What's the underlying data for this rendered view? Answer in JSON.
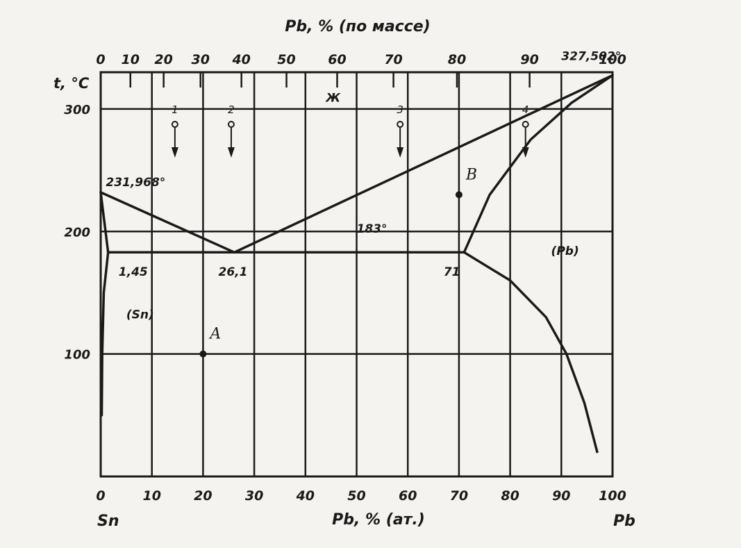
{
  "chart_data": {
    "type": "line",
    "top_axis_title": "Pb, % (по массе)",
    "bottom_axis_title": "Pb, % (ат.)",
    "y_axis_title": "t, °C",
    "left_end_label": "Sn",
    "right_end_label": "Pb",
    "x_range": [
      0,
      100
    ],
    "y_range": [
      0,
      330
    ],
    "x_ticks": [
      "0",
      "10",
      "20",
      "30",
      "40",
      "50",
      "60",
      "70",
      "80",
      "90",
      "100"
    ],
    "y_ticks": [
      "100",
      "200",
      "300"
    ],
    "top_ticks": [
      {
        "label": "0",
        "at": 0
      },
      {
        "label": "10",
        "at": 5.8
      },
      {
        "label": "20",
        "at": 12.3
      },
      {
        "label": "30",
        "at": 19.5
      },
      {
        "label": "40",
        "at": 27.5
      },
      {
        "label": "50",
        "at": 36.3
      },
      {
        "label": "60",
        "at": 46.2
      },
      {
        "label": "70",
        "at": 57.2
      },
      {
        "label": "80",
        "at": 69.6
      },
      {
        "label": "90",
        "at": 83.8
      },
      {
        "label": "100",
        "at": 100
      }
    ],
    "series": [
      {
        "values": [
          [
            0,
            231.968
          ],
          [
            26.1,
            183
          ]
        ]
      },
      {
        "values": [
          [
            26.1,
            183
          ],
          [
            100,
            327.502
          ]
        ]
      },
      {
        "values": [
          [
            0,
            231.968
          ],
          [
            1.45,
            183
          ]
        ]
      },
      {
        "values": [
          [
            1.45,
            183
          ],
          [
            0.6,
            150
          ],
          [
            0.3,
            100
          ],
          [
            0.2,
            50
          ]
        ]
      },
      {
        "values": [
          [
            71,
            183
          ],
          [
            76,
            230
          ],
          [
            84,
            275
          ],
          [
            92,
            305
          ],
          [
            100,
            327.502
          ]
        ]
      },
      {
        "values": [
          [
            71,
            183
          ],
          [
            80,
            160
          ],
          [
            87,
            130
          ],
          [
            91,
            100
          ],
          [
            94.5,
            60
          ],
          [
            97,
            20
          ]
        ]
      },
      {
        "values": [
          [
            1.45,
            183
          ],
          [
            71,
            183
          ]
        ]
      }
    ],
    "points": [
      {
        "label": "A",
        "x": 20,
        "y": 100
      },
      {
        "label": "B",
        "x": 70,
        "y": 230
      }
    ],
    "annotations": [
      {
        "text": "231,968°",
        "x": 1,
        "y": 237
      },
      {
        "text": "327,502°",
        "x": 90,
        "y": 340
      },
      {
        "text": "183°",
        "x": 50,
        "y": 199
      },
      {
        "text": "1,45",
        "x": 3.5,
        "y": 164
      },
      {
        "text": "26,1",
        "x": 23,
        "y": 164
      },
      {
        "text": "71",
        "x": 67,
        "y": 164
      },
      {
        "text": "(Sn)",
        "x": 5,
        "y": 129
      },
      {
        "text": "(Pb)",
        "x": 88,
        "y": 181
      },
      {
        "text": "Ж",
        "x": 44,
        "y": 306
      }
    ],
    "arrows": [
      {
        "label": "1",
        "x": 14.5
      },
      {
        "label": "2",
        "x": 25.5
      },
      {
        "label": "3",
        "x": 58.5
      },
      {
        "label": "4",
        "x": 83
      }
    ],
    "grid": true
  }
}
